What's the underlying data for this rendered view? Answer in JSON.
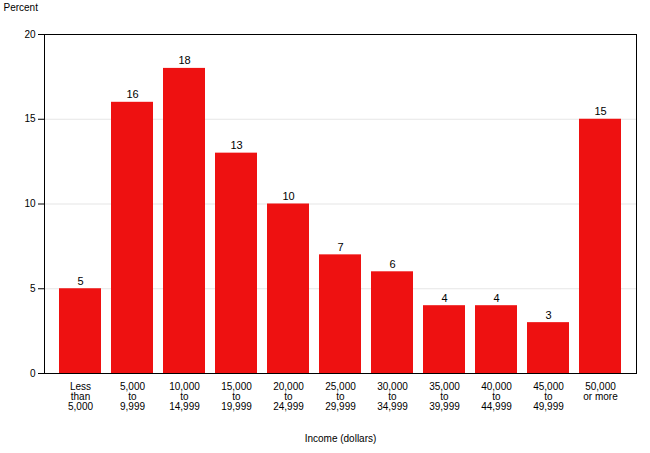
{
  "chart_data": {
    "type": "bar",
    "categories": [
      "Less\nthan\n5,000",
      "5,000\nto\n9,999",
      "10,000\nto\n14,999",
      "15,000\nto\n19,999",
      "20,000\nto\n24,999",
      "25,000\nto\n29,999",
      "30,000\nto\n34,999",
      "35,000\nto\n39,999",
      "40,000\nto\n44,999",
      "45,000\nto\n49,999",
      "50,000\nor more"
    ],
    "values": [
      5,
      16,
      18,
      13,
      10,
      7,
      6,
      4,
      4,
      3,
      15
    ],
    "color": "#ee1111",
    "xlabel": "Income (dollars)",
    "ylabel": "Percent",
    "ylim": [
      0,
      20
    ],
    "yticks": [
      0,
      5,
      10,
      15,
      20
    ],
    "grid": true,
    "data_labels": true
  }
}
